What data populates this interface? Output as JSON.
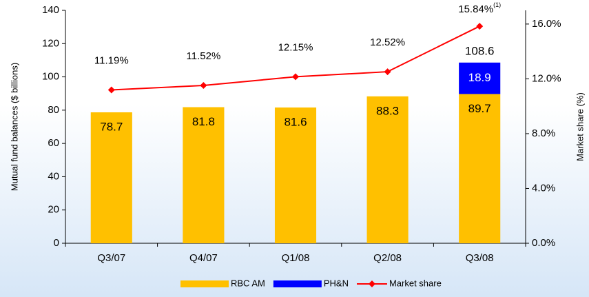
{
  "chart_data": {
    "type": "bar",
    "categories": [
      "Q3/07",
      "Q4/07",
      "Q1/08",
      "Q2/08",
      "Q3/08"
    ],
    "series": [
      {
        "name": "RBC AM",
        "color": "#ffc000",
        "values": [
          78.7,
          81.8,
          81.6,
          88.3,
          89.7
        ]
      },
      {
        "name": "PH&N",
        "color": "#0000ff",
        "values": [
          null,
          null,
          null,
          null,
          18.9
        ]
      },
      {
        "name": "Market share",
        "color": "#ff0000",
        "type": "line",
        "axis": "y2",
        "values": [
          11.19,
          11.52,
          12.15,
          12.52,
          15.84
        ],
        "value_labels": [
          "11.19%",
          "11.52%",
          "12.15%",
          "12.52%",
          "15.84%"
        ],
        "value_label_notes": [
          null,
          null,
          null,
          null,
          "(1)"
        ]
      }
    ],
    "stack_totals": [
      null,
      null,
      null,
      null,
      108.6
    ],
    "ylabel": "Mutual fund balances ($ billions)",
    "y2label": "Market share (%)",
    "ylim": [
      0,
      140
    ],
    "yticks": [
      0,
      20,
      40,
      60,
      80,
      100,
      120,
      140
    ],
    "y2lim": [
      0,
      17
    ],
    "y2ticks": [
      {
        "value": 0,
        "label": "0.0%"
      },
      {
        "value": 4,
        "label": "4.0%"
      },
      {
        "value": 8,
        "label": "8.0%"
      },
      {
        "value": 12,
        "label": "12.0%"
      },
      {
        "value": 16,
        "label": "16.0%"
      }
    ],
    "legend": "bottom"
  }
}
